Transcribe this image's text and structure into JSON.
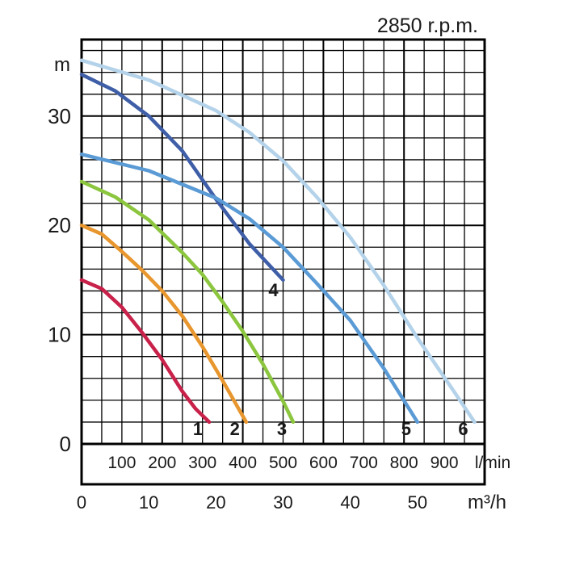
{
  "chart_data": {
    "type": "line",
    "title": "2850 r.p.m.",
    "ylabel": "m",
    "xlabel_flow_m3h": "m³/h",
    "xlabel_flow_lmin": "l/min",
    "ylim": [
      0,
      37
    ],
    "xlim_m3h": [
      0,
      60
    ],
    "yticks": [
      "0",
      "10",
      "20",
      "30"
    ],
    "xticks_m3h": [
      "0",
      "10",
      "20",
      "30",
      "40",
      "50"
    ],
    "xticks_lmin": [
      "100",
      "200",
      "300",
      "400",
      "500",
      "600",
      "700",
      "800",
      "900"
    ],
    "grid": true,
    "series": [
      {
        "name": "1",
        "color": "#c8214a",
        "x": [
          0,
          3,
          6,
          9,
          12,
          15,
          17,
          19
        ],
        "y": [
          15,
          14.2,
          12.5,
          10.2,
          7.7,
          4.8,
          3.2,
          2
        ]
      },
      {
        "name": "2",
        "color": "#e8962e",
        "x": [
          0,
          3,
          6,
          9,
          12,
          15,
          18,
          21,
          24.5
        ],
        "y": [
          20,
          19.2,
          17.6,
          15.9,
          14,
          11.7,
          8.9,
          5.8,
          2
        ]
      },
      {
        "name": "3",
        "color": "#8cc63f",
        "x": [
          0,
          5,
          10,
          15,
          18,
          21,
          24,
          27,
          30,
          31.5
        ],
        "y": [
          24,
          22.6,
          20.5,
          17.5,
          15.5,
          13,
          10.3,
          7.3,
          3.9,
          2
        ]
      },
      {
        "name": "4",
        "color": "#3f5ea8",
        "x": [
          0,
          5,
          10,
          15,
          20,
          25,
          30
        ],
        "y": [
          33.8,
          32.3,
          30,
          26.8,
          22.4,
          18.3,
          15
        ]
      },
      {
        "name": "5",
        "color": "#5b9bd5",
        "x": [
          0,
          10,
          20,
          25,
          30,
          35,
          40,
          45,
          50
        ],
        "y": [
          26.5,
          25,
          22.5,
          20.6,
          18,
          14.7,
          11.3,
          6.9,
          2
        ]
      },
      {
        "name": "6",
        "color": "#b4d3ea",
        "x": [
          0,
          10,
          20,
          25,
          30,
          35,
          40,
          45,
          50,
          55,
          58.5
        ],
        "y": [
          35.1,
          33.3,
          30.5,
          28.5,
          25.9,
          22.6,
          18.9,
          14.5,
          9.7,
          5.2,
          2
        ]
      }
    ]
  }
}
